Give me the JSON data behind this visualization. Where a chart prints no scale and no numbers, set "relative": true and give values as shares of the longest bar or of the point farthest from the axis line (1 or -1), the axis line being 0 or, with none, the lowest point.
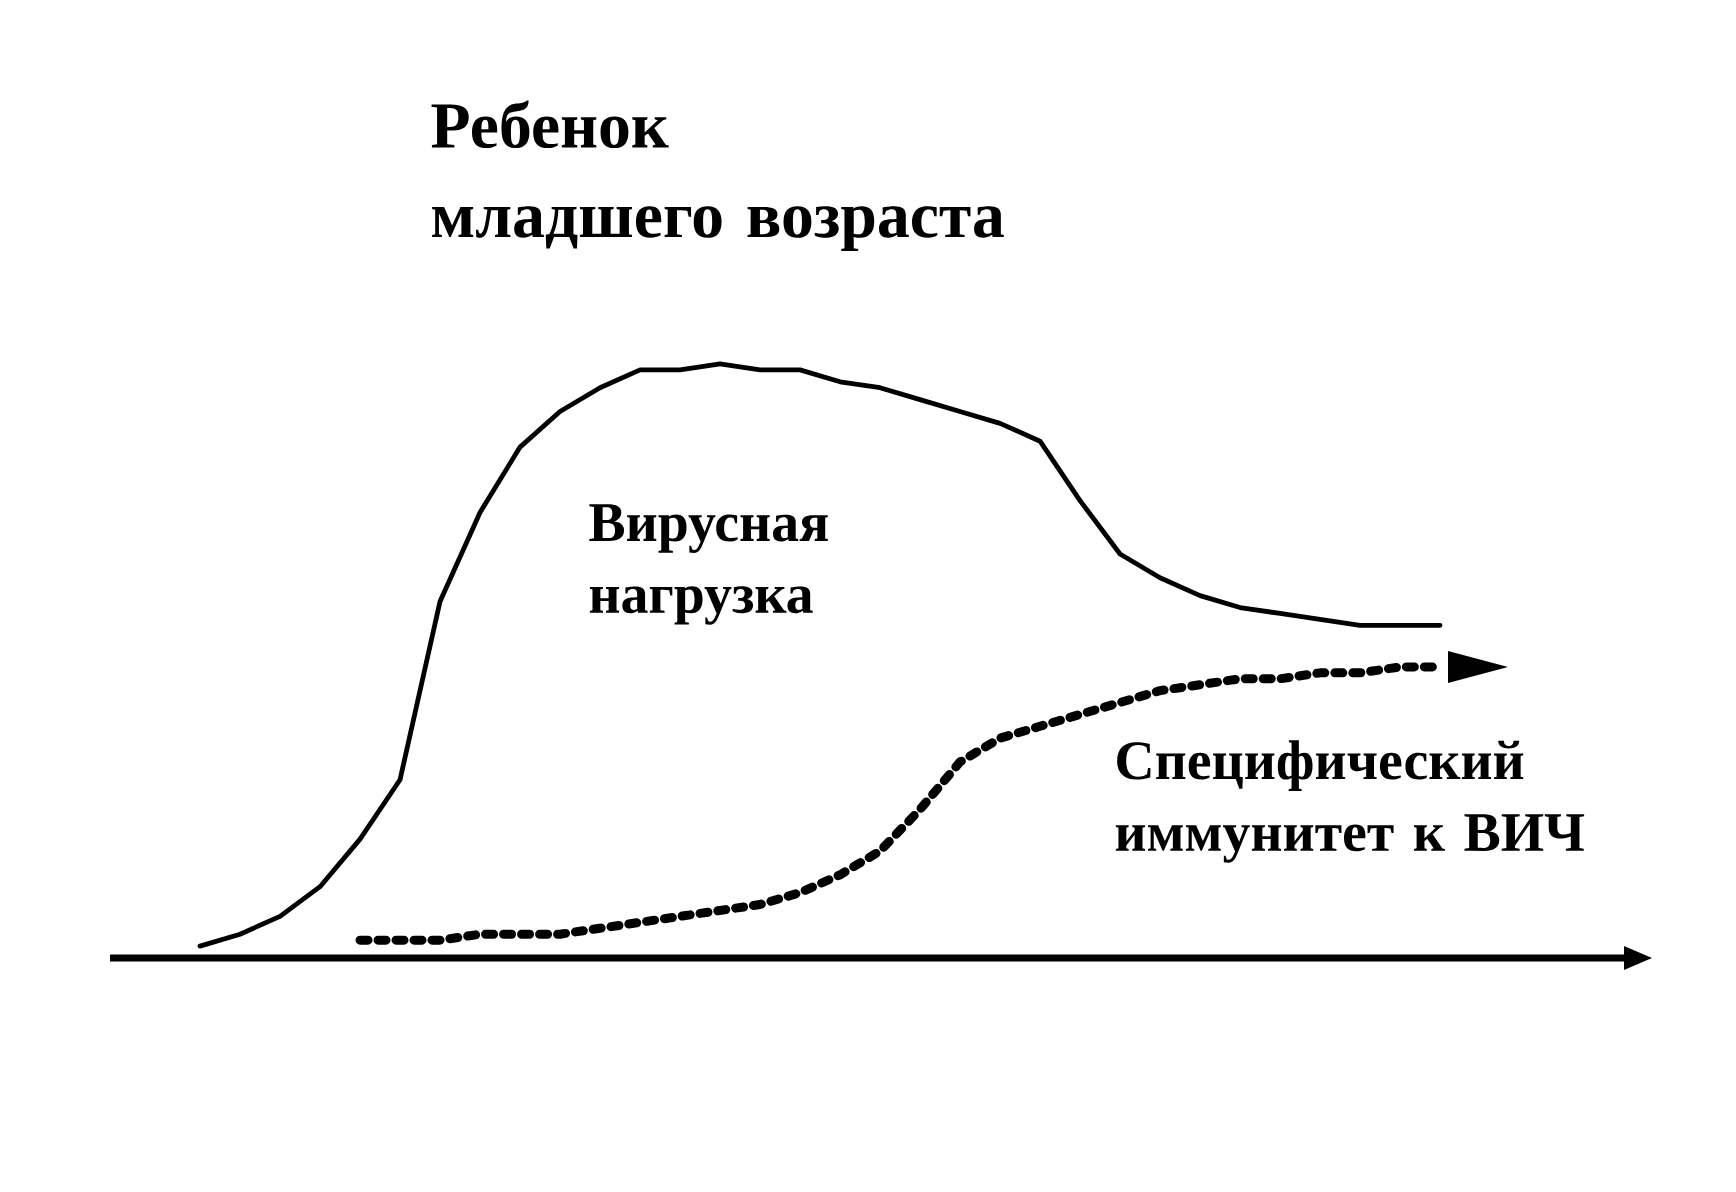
{
  "chart_data": {
    "type": "line",
    "relative": true,
    "title": "Ребенок младшего возраста",
    "marker": "none",
    "categories": [
      null,
      null,
      null,
      null,
      null,
      null,
      null,
      null,
      null,
      null,
      null,
      null,
      null,
      null,
      null,
      null,
      null,
      null,
      null,
      null,
      null,
      null,
      null,
      null,
      null,
      null,
      null,
      null,
      null,
      null,
      null,
      null,
      null,
      null,
      null,
      null,
      null,
      null,
      null
    ],
    "series": [
      {
        "name": "Вирусная нагрузка",
        "color": "#000000",
        "line_style": "solid",
        "values": [
          null,
          null,
          0.02,
          0.04,
          0.07,
          0.12,
          0.2,
          0.3,
          0.6,
          0.75,
          0.86,
          0.92,
          0.96,
          0.99,
          0.99,
          1,
          0.99,
          0.99,
          0.97,
          0.96,
          0.94,
          0.92,
          0.9,
          0.87,
          0.77,
          0.68,
          0.64,
          0.61,
          0.59,
          0.58,
          0.57,
          0.56,
          0.56,
          0.56,
          null,
          null,
          null,
          null,
          null
        ]
      },
      {
        "name": "Специфический иммунитет к ВИЧ",
        "color": "#000000",
        "line_style": "dotted",
        "values": [
          null,
          null,
          null,
          null,
          null,
          null,
          0.03,
          0.03,
          0.03,
          0.04,
          0.04,
          0.04,
          0.05,
          0.06,
          0.07,
          0.08,
          0.09,
          0.11,
          0.14,
          0.18,
          0.25,
          0.33,
          0.37,
          0.39,
          0.41,
          0.43,
          0.45,
          0.46,
          0.47,
          0.47,
          0.48,
          0.48,
          0.49,
          0.49,
          null,
          null,
          null,
          null,
          null
        ]
      }
    ]
  }
}
